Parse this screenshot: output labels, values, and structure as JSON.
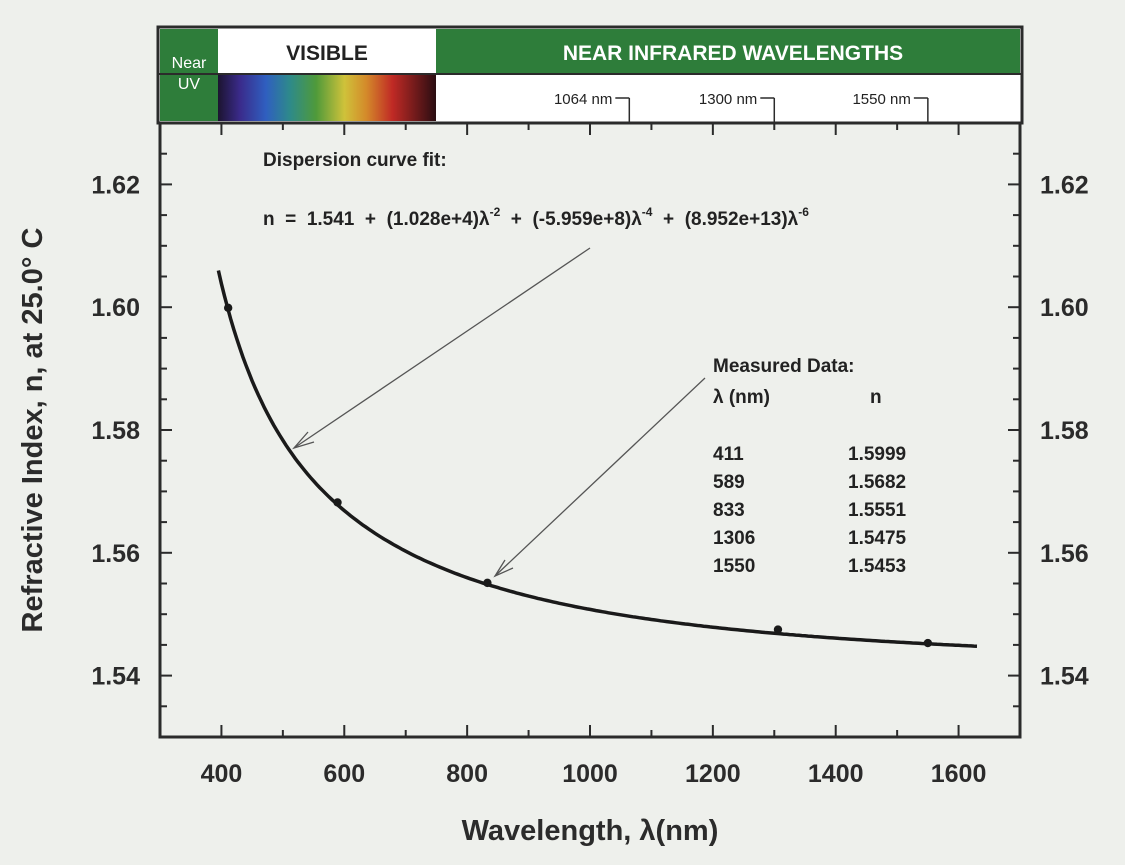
{
  "chart_data": {
    "type": "line",
    "xlabel": "Wavelength, λ(nm)",
    "ylabel": "Refractive Index, n, at 25.0° C",
    "xlim": [
      300,
      1700
    ],
    "ylim": [
      1.53,
      1.63
    ],
    "x_ticks": [
      400,
      600,
      800,
      1000,
      1200,
      1400,
      1600
    ],
    "y_ticks": [
      1.54,
      1.56,
      1.58,
      1.6,
      1.62
    ],
    "x_tick_labels": [
      "400",
      "600",
      "800",
      "1000",
      "1200",
      "1400",
      "1600"
    ],
    "y_tick_labels": [
      "1.54",
      "1.56",
      "1.58",
      "1.60",
      "1.62"
    ],
    "fit": {
      "label": "Dispersion curve fit:",
      "equation": {
        "lhs": "n  =  1.541  +  ",
        "t1": "(1.028e+4)λ",
        "e1": "-2",
        "plus1": "  +  ",
        "t2": "(-5.959e+8)λ",
        "e2": "-4",
        "plus2": "  +  ",
        "t3": "(8.952e+13)λ",
        "e3": "-6"
      },
      "coefficients": {
        "A": 1.541,
        "B": 10280,
        "C": -595900000,
        "D": 89520000000000
      },
      "x_range": [
        395,
        1630
      ]
    },
    "measured": {
      "title": "Measured Data:",
      "col_x": "λ (nm)",
      "col_n": "n",
      "rows": [
        {
          "x": 411,
          "n": 1.5999,
          "x_label": "411",
          "n_label": "1.5999"
        },
        {
          "x": 589,
          "n": 1.5682,
          "x_label": "589",
          "n_label": "1.5682"
        },
        {
          "x": 833,
          "n": 1.5551,
          "x_label": "833",
          "n_label": "1.5551"
        },
        {
          "x": 1306,
          "n": 1.5475,
          "x_label": "1306",
          "n_label": "1.5475"
        },
        {
          "x": 1550,
          "n": 1.5453,
          "x_label": "1550",
          "n_label": "1.5453"
        }
      ]
    },
    "spectrum_band": {
      "near_uv_line1": "Near",
      "near_uv_line2": "UV",
      "visible": "VISIBLE",
      "near_ir": "NEAR INFRARED WAVELENGTHS",
      "markers": [
        {
          "label": "1064 nm",
          "x": 1064
        },
        {
          "label": "1300 nm",
          "x": 1300
        },
        {
          "label": "1550 nm",
          "x": 1550
        }
      ],
      "colors": {
        "band_green": "#2e7d3a",
        "frame": "#2b2b2b"
      }
    },
    "grid": false,
    "right_axis_mirrored": true
  }
}
